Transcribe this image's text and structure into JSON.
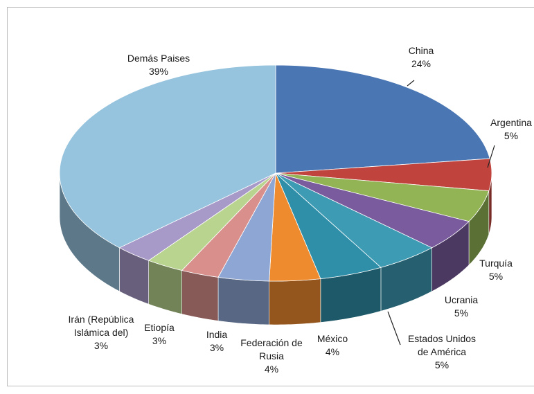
{
  "chart_data": {
    "type": "pie",
    "title": "",
    "categories": [
      "China",
      "Argentina",
      "",
      "Turquía",
      "Ucrania",
      "Estados Unidos de América",
      "México",
      "Federación de Rusia",
      "India",
      "Etiopía",
      "Irán (República Islámica del)",
      "Demás Paises"
    ],
    "values": [
      24,
      5,
      5,
      5,
      5,
      5,
      4,
      4,
      3,
      3,
      3,
      39
    ],
    "value_labels": [
      "24%",
      "5%",
      "",
      "5%",
      "5%",
      "5%",
      "4%",
      "4%",
      "3%",
      "3%",
      "3%",
      "39%"
    ],
    "colors": [
      "#4a76b3",
      "#c0443d",
      "#93b455",
      "#7a5c9e",
      "#3e9bb4",
      "#2f8fa8",
      "#ee8b2e",
      "#8ea6d4",
      "#d98f8c",
      "#b9d48e",
      "#a799c8",
      "#96c3dd"
    ],
    "legend": "none",
    "label_lines": {
      "category": [
        "China",
        "Argentina",
        "",
        "Turquía",
        "Ucrania",
        "Estados Unidos",
        "México",
        "Federación de",
        "India",
        "Etiopía",
        "Irán (República",
        "Demás Paises"
      ],
      "category2": [
        "",
        "",
        "",
        "",
        "",
        "de América",
        "",
        "Rusia",
        "",
        "",
        "Islámica del)",
        ""
      ]
    }
  }
}
